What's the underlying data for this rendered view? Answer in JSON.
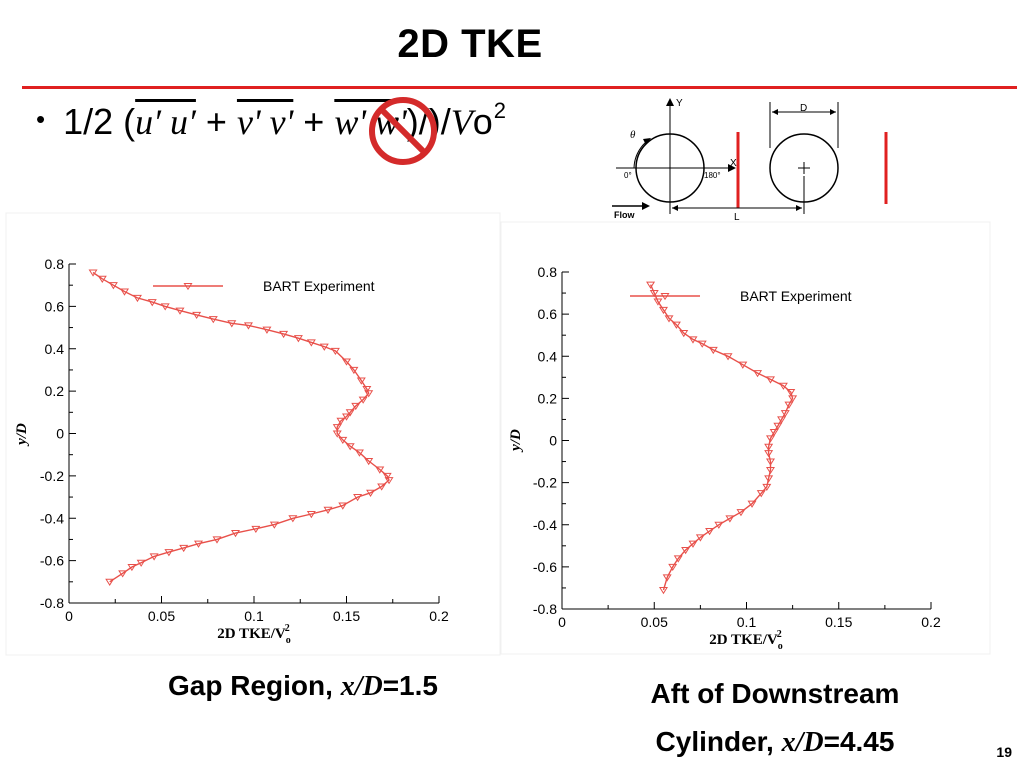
{
  "slide": {
    "title": "2D TKE",
    "formula": {
      "prefix": "1/2 (",
      "term1": "u′ u′",
      "plus1": " + ",
      "term2": "v' v'",
      "plus2": " + ",
      "term3": "w' w'",
      "suffix": ")/)/",
      "V": "V",
      "o": "o",
      "exp": "2"
    },
    "schematic": {
      "y_label": "Y",
      "x_label": "X",
      "theta": "θ",
      "zero_deg": "0°",
      "deg180": "180°",
      "flow": "Flow",
      "D": "D",
      "L": "L"
    },
    "caption_left": {
      "text": "Gap Region, ",
      "xd": "x/D",
      "value": "=1.5"
    },
    "caption_right": {
      "line1": "Aft of Downstream",
      "line2": "Cylinder, ",
      "xd": "x/D",
      "value": "=4.45"
    },
    "page_number": "19",
    "colors": {
      "accent": "#e02020",
      "series": "#e8504a"
    }
  },
  "chart_data": [
    {
      "type": "line",
      "xlabel": "2D TKE/V",
      "xlabel_sub": "o",
      "xlabel_sup": "2",
      "ylabel": "y/D",
      "xlim": [
        0,
        0.2
      ],
      "ylim": [
        -0.8,
        0.8
      ],
      "xticks": [
        0,
        0.05,
        0.1,
        0.15,
        0.2
      ],
      "xtick_labels": [
        "0",
        "0.05",
        "0.1",
        "0.15",
        "0.2"
      ],
      "yticks": [
        -0.8,
        -0.6,
        -0.4,
        -0.2,
        0,
        0.2,
        0.4,
        0.6,
        0.8
      ],
      "ytick_labels": [
        "-0.8",
        "-0.6",
        "-0.4",
        "-0.2",
        "0",
        "0.2",
        "0.4",
        "0.6",
        "0.8"
      ],
      "legend": "top-right",
      "series": [
        {
          "name": "BART Experiment",
          "x": [
            0.013,
            0.018,
            0.024,
            0.03,
            0.037,
            0.045,
            0.052,
            0.06,
            0.069,
            0.078,
            0.088,
            0.097,
            0.107,
            0.116,
            0.124,
            0.131,
            0.138,
            0.144,
            0.15,
            0.154,
            0.158,
            0.161,
            0.162,
            0.159,
            0.155,
            0.152,
            0.15,
            0.147,
            0.145,
            0.145,
            0.148,
            0.152,
            0.157,
            0.162,
            0.168,
            0.172,
            0.173,
            0.169,
            0.163,
            0.156,
            0.148,
            0.14,
            0.131,
            0.121,
            0.111,
            0.101,
            0.09,
            0.08,
            0.07,
            0.062,
            0.054,
            0.046,
            0.039,
            0.034,
            0.029,
            0.022
          ],
          "y": [
            0.76,
            0.73,
            0.7,
            0.67,
            0.64,
            0.62,
            0.6,
            0.58,
            0.56,
            0.54,
            0.52,
            0.51,
            0.49,
            0.47,
            0.45,
            0.43,
            0.41,
            0.39,
            0.34,
            0.3,
            0.25,
            0.21,
            0.19,
            0.16,
            0.13,
            0.1,
            0.08,
            0.06,
            0.03,
            0.0,
            -0.03,
            -0.06,
            -0.09,
            -0.13,
            -0.17,
            -0.2,
            -0.22,
            -0.25,
            -0.28,
            -0.3,
            -0.34,
            -0.36,
            -0.38,
            -0.4,
            -0.43,
            -0.45,
            -0.47,
            -0.5,
            -0.52,
            -0.54,
            -0.56,
            -0.58,
            -0.61,
            -0.63,
            -0.66,
            -0.7
          ]
        }
      ]
    },
    {
      "type": "line",
      "xlabel": "2D TKE/V",
      "xlabel_sub": "o",
      "xlabel_sup": "2",
      "ylabel": "y/D",
      "xlim": [
        0,
        0.2
      ],
      "ylim": [
        -0.8,
        0.8
      ],
      "xticks": [
        0,
        0.05,
        0.1,
        0.15,
        0.2
      ],
      "xtick_labels": [
        "0",
        "0.05",
        "0.1",
        "0.15",
        "0.2"
      ],
      "yticks": [
        -0.8,
        -0.6,
        -0.4,
        -0.2,
        0,
        0.2,
        0.4,
        0.6,
        0.8
      ],
      "ytick_labels": [
        "-0.8",
        "-0.6",
        "-0.4",
        "-0.2",
        "0",
        "0.2",
        "0.4",
        "0.6",
        "0.8"
      ],
      "legend": "top-right",
      "series": [
        {
          "name": "BART Experiment",
          "x": [
            0.048,
            0.05,
            0.052,
            0.055,
            0.058,
            0.062,
            0.066,
            0.071,
            0.076,
            0.082,
            0.09,
            0.098,
            0.106,
            0.113,
            0.12,
            0.124,
            0.125,
            0.123,
            0.121,
            0.119,
            0.117,
            0.115,
            0.113,
            0.112,
            0.112,
            0.113,
            0.113,
            0.112,
            0.111,
            0.108,
            0.103,
            0.097,
            0.091,
            0.085,
            0.08,
            0.075,
            0.071,
            0.067,
            0.063,
            0.06,
            0.057,
            0.055
          ],
          "y": [
            0.74,
            0.7,
            0.66,
            0.62,
            0.58,
            0.55,
            0.51,
            0.48,
            0.46,
            0.43,
            0.4,
            0.36,
            0.32,
            0.29,
            0.26,
            0.23,
            0.2,
            0.17,
            0.13,
            0.1,
            0.07,
            0.04,
            0.01,
            -0.03,
            -0.06,
            -0.1,
            -0.14,
            -0.18,
            -0.22,
            -0.25,
            -0.3,
            -0.34,
            -0.37,
            -0.4,
            -0.43,
            -0.46,
            -0.49,
            -0.52,
            -0.56,
            -0.6,
            -0.65,
            -0.71
          ]
        }
      ]
    }
  ]
}
